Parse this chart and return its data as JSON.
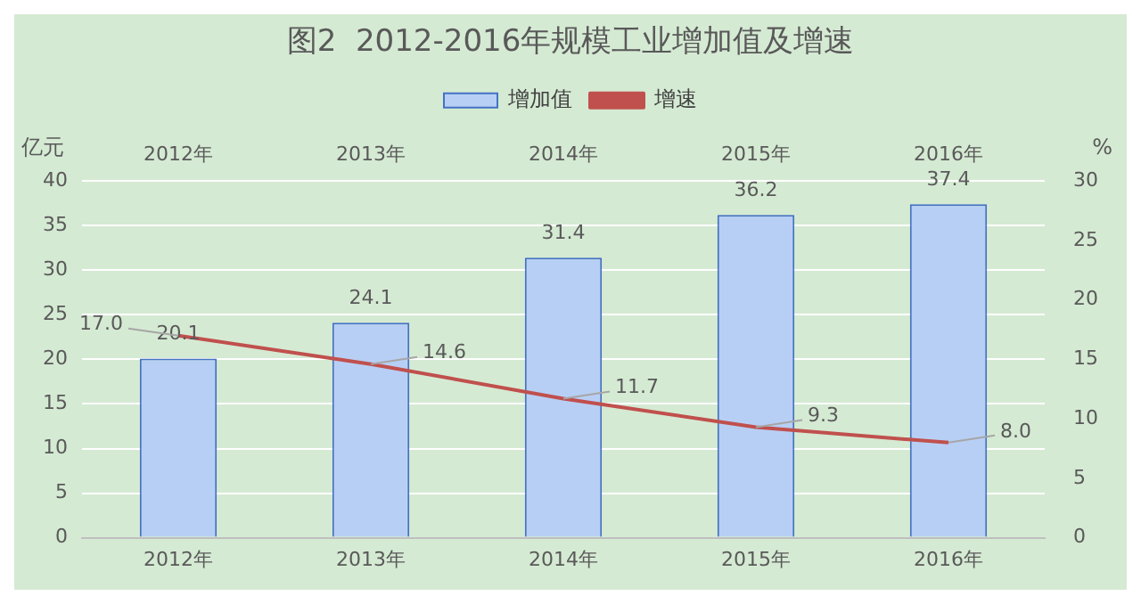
{
  "chart_data": {
    "type": "bar",
    "title": "图2  2012-2016年规模工业增加值及增速",
    "categories": [
      "2012年",
      "2013年",
      "2014年",
      "2015年",
      "2016年"
    ],
    "ylabel": "亿元",
    "y2label": "%",
    "series": [
      {
        "name": "增加值",
        "type": "bar",
        "color": "#b8cff5",
        "values": [
          20.1,
          24.1,
          31.4,
          36.2,
          37.4
        ],
        "value_labels": [
          "20.1",
          "24.1",
          "31.4",
          "36.2",
          "37.4"
        ]
      },
      {
        "name": "增速",
        "type": "line",
        "axis": "y2",
        "color": "#c0504d",
        "values": [
          17.0,
          14.6,
          11.7,
          9.3,
          8.0
        ],
        "value_labels": [
          "17.0",
          "14.6",
          "11.7",
          "9.3",
          "8.0"
        ],
        "marker": "none"
      }
    ],
    "ylim": [
      0,
      40
    ],
    "yticks": [
      0,
      5,
      10,
      15,
      20,
      25,
      30,
      35,
      40
    ],
    "y2lim": [
      0,
      30
    ],
    "y2ticks": [
      0,
      5,
      10,
      15,
      20,
      25,
      30
    ],
    "grid": "y",
    "legend": "top"
  }
}
